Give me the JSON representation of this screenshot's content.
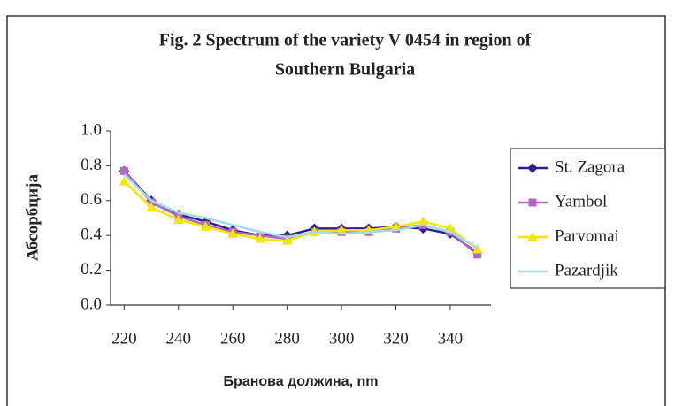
{
  "chart_data": {
    "type": "line",
    "title": [
      "Fig. 2 Spectrum of the variety V 0454 in region of",
      "Southern Bulgaria"
    ],
    "x_label": "Бранова должина, nm",
    "y_label": "Абсорбција",
    "x": [
      220,
      230,
      240,
      250,
      260,
      270,
      280,
      290,
      300,
      310,
      320,
      330,
      340,
      350
    ],
    "xlim": [
      215,
      355
    ],
    "xticks": [
      220,
      240,
      260,
      280,
      300,
      320,
      340
    ],
    "ylim": [
      0,
      1
    ],
    "yticks": [
      {
        "value": 0,
        "label": "0.0"
      },
      0.2,
      0.4,
      0.6,
      0.8,
      {
        "value": 1,
        "label": "1.0"
      }
    ],
    "legend": "right",
    "series": [
      {
        "name": "St. Zagora",
        "color": "#2e1f8f",
        "marker": "diamond",
        "values": [
          0.77,
          0.6,
          0.52,
          0.48,
          0.43,
          0.4,
          0.4,
          0.44,
          0.44,
          0.44,
          0.45,
          0.44,
          0.41,
          0.3
        ]
      },
      {
        "name": "Yambol",
        "color": "#b368bf",
        "marker": "square",
        "values": [
          0.77,
          0.59,
          0.51,
          0.46,
          0.42,
          0.4,
          0.38,
          0.42,
          0.42,
          0.42,
          0.44,
          0.46,
          0.42,
          0.29
        ]
      },
      {
        "name": "Parvomai",
        "color": "#f5e600",
        "marker": "triangle",
        "values": [
          0.71,
          0.56,
          0.49,
          0.45,
          0.41,
          0.38,
          0.37,
          0.42,
          0.43,
          0.43,
          0.45,
          0.48,
          0.44,
          0.32
        ]
      },
      {
        "name": "Pazardjik",
        "color": "#9fdcec",
        "marker": "none",
        "values": [
          0.75,
          0.6,
          0.53,
          0.5,
          0.46,
          0.42,
          0.39,
          0.42,
          0.41,
          0.42,
          0.43,
          0.46,
          0.42,
          0.33
        ]
      }
    ]
  }
}
